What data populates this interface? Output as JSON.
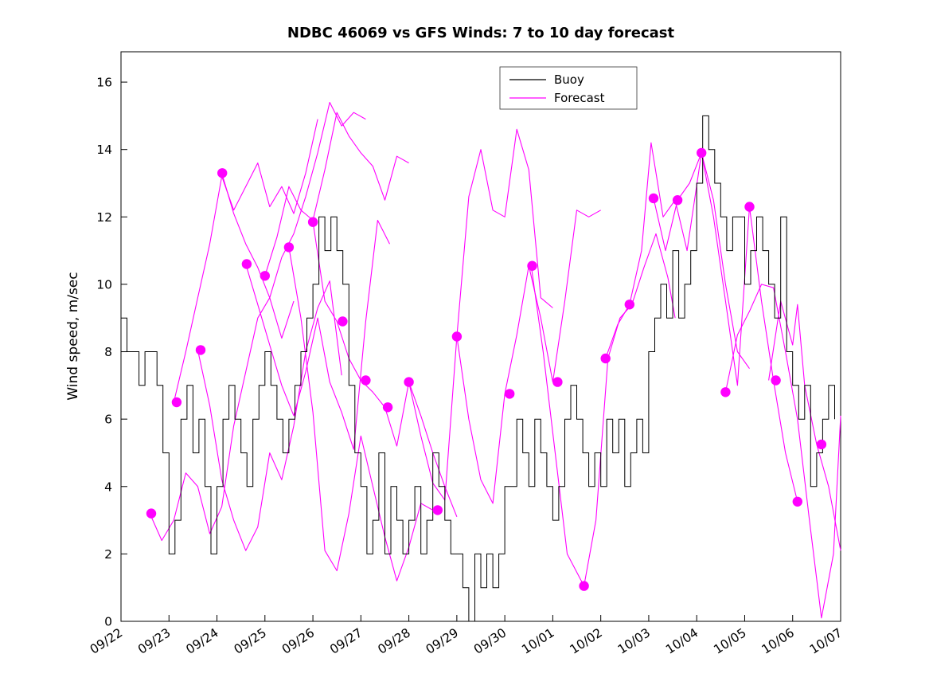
{
  "figure": {
    "background_color": "#ffffff",
    "axis_color": "#000000"
  },
  "legend": {
    "items": [
      {
        "label": "Buoy",
        "color": "#000000"
      },
      {
        "label": "Forecast",
        "color": "#ff00ff"
      }
    ]
  },
  "chart_data": {
    "type": "line",
    "title": "NDBC 46069 vs GFS Winds: 7 to 10 day forecast",
    "xlabel": "",
    "ylabel": "Wind speed, m/sec",
    "x_unit": "days since 09/22 (labels are MM/DD dates)",
    "xlim": [
      0,
      15
    ],
    "ylim": [
      0,
      16.9
    ],
    "grid": false,
    "legend_position": "top-center-inside",
    "x_ticks": [
      0,
      1,
      2,
      3,
      4,
      5,
      6,
      7,
      8,
      9,
      10,
      11,
      12,
      13,
      14,
      15
    ],
    "x_tick_labels": [
      "09/22",
      "09/23",
      "09/24",
      "09/25",
      "09/26",
      "09/27",
      "09/28",
      "09/29",
      "09/30",
      "10/01",
      "10/02",
      "10/03",
      "10/04",
      "10/05",
      "10/06",
      "10/07"
    ],
    "y_ticks": [
      0,
      2,
      4,
      6,
      8,
      10,
      12,
      14,
      16
    ],
    "series": {
      "buoy": {
        "name": "Buoy",
        "color": "#000000",
        "style": "stairs",
        "x_start": 0,
        "x_step": 0.125,
        "values": [
          9,
          8,
          8,
          7,
          8,
          8,
          7,
          5,
          2,
          3,
          6,
          7,
          5,
          6,
          4,
          2,
          4,
          6,
          7,
          6,
          5,
          4,
          6,
          7,
          8,
          7,
          6,
          5,
          6,
          7,
          8,
          9,
          10,
          12,
          11,
          12,
          11,
          10,
          7,
          5,
          4,
          2,
          3,
          5,
          2,
          4,
          3,
          2,
          3,
          4,
          2,
          3,
          5,
          4,
          3,
          2,
          2,
          1,
          0,
          2,
          1,
          2,
          1,
          2,
          4,
          4,
          6,
          5,
          4,
          6,
          5,
          4,
          3,
          4,
          6,
          7,
          6,
          5,
          4,
          5,
          4,
          6,
          5,
          6,
          4,
          5,
          6,
          5,
          8,
          9,
          10,
          9,
          11,
          9,
          10,
          11,
          13,
          15,
          14,
          13,
          12,
          11,
          12,
          12,
          10,
          11,
          12,
          11,
          10,
          9,
          12,
          8,
          7,
          6,
          7,
          4,
          5,
          6,
          7,
          6
        ]
      },
      "forecast_runs": [
        {
          "x": [
            0.6,
            0.85,
            1.1,
            1.35,
            1.6,
            1.85,
            2.1,
            2.35,
            2.6,
            2.85,
            3.1,
            3.35,
            3.6
          ],
          "y": [
            3.2,
            2.4,
            3.0,
            4.4,
            4.0,
            2.6,
            3.4,
            5.8,
            7.4,
            9.0,
            9.6,
            8.4,
            9.5
          ]
        },
        {
          "x": [
            1.1,
            1.35,
            1.6,
            1.85,
            2.1,
            2.35,
            2.6,
            2.85,
            3.1,
            3.35,
            3.6,
            3.85,
            4.1
          ],
          "y": [
            6.5,
            8.0,
            9.6,
            11.2,
            13.2,
            12.2,
            12.9,
            13.6,
            12.3,
            12.9,
            12.1,
            13.3,
            14.9
          ]
        },
        {
          "x": [
            1.6,
            1.85,
            2.1,
            2.35,
            2.6,
            2.85,
            3.1,
            3.35,
            3.6,
            3.85,
            4.1,
            4.35,
            4.6
          ],
          "y": [
            8.05,
            6.4,
            4.2,
            3.0,
            2.1,
            2.8,
            5.0,
            4.2,
            5.8,
            8.0,
            9.3,
            10.1,
            7.3
          ]
        },
        {
          "x": [
            2.1,
            2.35,
            2.6,
            2.85,
            3.1,
            3.35,
            3.6,
            3.85,
            4.1,
            4.35,
            4.6,
            4.85,
            5.1
          ],
          "y": [
            13.3,
            12.1,
            11.2,
            10.5,
            9.6,
            10.8,
            11.5,
            12.6,
            13.9,
            15.4,
            14.7,
            15.1,
            14.9
          ]
        },
        {
          "x": [
            2.6,
            2.85,
            3.1,
            3.35,
            3.6,
            3.85,
            4.1,
            4.35,
            4.6,
            4.85,
            5.1,
            5.35,
            5.6
          ],
          "y": [
            10.6,
            9.4,
            8.2,
            7.0,
            6.1,
            7.4,
            9.0,
            7.1,
            6.2,
            5.1,
            8.9,
            11.9,
            11.2
          ]
        },
        {
          "x": [
            3.0,
            3.25,
            3.5,
            3.75,
            4.0,
            4.25,
            4.5,
            4.75,
            5.0,
            5.25,
            5.5,
            5.75,
            6.0
          ],
          "y": [
            10.25,
            11.4,
            12.9,
            12.2,
            11.9,
            13.4,
            15.1,
            14.4,
            13.9,
            13.5,
            12.5,
            13.8,
            13.6
          ]
        },
        {
          "x": [
            3.5,
            3.75,
            4.0,
            4.25,
            4.5,
            4.75,
            5.0,
            5.25,
            5.5,
            5.75,
            6.0,
            6.25,
            6.5
          ],
          "y": [
            11.1,
            9.0,
            6.2,
            2.1,
            1.5,
            3.2,
            5.5,
            4.0,
            2.5,
            1.2,
            2.2,
            3.5,
            3.3
          ]
        },
        {
          "x": [
            4.0,
            4.25,
            4.5,
            4.75,
            5.0,
            5.25,
            5.5,
            5.75,
            6.0,
            6.25,
            6.5,
            6.75,
            7.0
          ],
          "y": [
            11.85,
            9.5,
            8.9,
            7.8,
            7.15,
            6.8,
            6.35,
            5.2,
            7.1,
            6.1,
            5.0,
            4.0,
            3.1
          ]
        },
        {
          "x": [
            6.0,
            6.25,
            6.5,
            6.75,
            7.0,
            7.25,
            7.5,
            7.75,
            8.0,
            8.25,
            8.5,
            8.75,
            9.0
          ],
          "y": [
            7.1,
            5.5,
            4.1,
            3.6,
            8.45,
            12.6,
            14.0,
            12.2,
            12.0,
            14.6,
            13.4,
            9.6,
            9.3
          ]
        },
        {
          "x": [
            7.0,
            7.25,
            7.5,
            7.75,
            8.0,
            8.25,
            8.5,
            8.75,
            9.0,
            9.25,
            9.5,
            9.75,
            10.0
          ],
          "y": [
            8.45,
            6.0,
            4.2,
            3.5,
            6.75,
            8.5,
            10.55,
            9.0,
            7.1,
            9.5,
            12.2,
            12.0,
            12.2
          ]
        },
        {
          "x": [
            8.55,
            8.8,
            9.05,
            9.3,
            9.65,
            9.9,
            10.15,
            10.4,
            10.65,
            10.9,
            11.15,
            11.4,
            11.55
          ],
          "y": [
            10.55,
            8.0,
            5.0,
            2.0,
            1.05,
            3.0,
            7.8,
            9.0,
            9.4,
            10.5,
            11.5,
            10.2,
            9.0
          ]
        },
        {
          "x": [
            10.1,
            10.35,
            10.6,
            10.85,
            11.05,
            11.3,
            11.55,
            11.8,
            12.1,
            12.35,
            12.6,
            12.85,
            13.1
          ],
          "y": [
            7.8,
            8.8,
            9.4,
            11.0,
            14.2,
            12.0,
            12.5,
            11.0,
            13.9,
            12.5,
            10.0,
            8.0,
            7.5
          ]
        },
        {
          "x": [
            11.1,
            11.35,
            11.6,
            11.85,
            12.1,
            12.35,
            12.6,
            12.85,
            13.1,
            13.35,
            13.6,
            13.85,
            14.1
          ],
          "y": [
            12.55,
            11.0,
            12.5,
            13.0,
            13.9,
            12.0,
            9.5,
            7.0,
            12.3,
            9.5,
            7.15,
            5.0,
            3.55
          ]
        },
        {
          "x": [
            12.6,
            12.85,
            13.1,
            13.35,
            13.6,
            13.85,
            14.1,
            14.35,
            14.6,
            14.85,
            15.0
          ],
          "y": [
            6.8,
            8.5,
            9.2,
            10.0,
            9.9,
            8.0,
            6.0,
            3.0,
            0.1,
            2.0,
            6.1
          ]
        },
        {
          "x": [
            13.5,
            13.75,
            14.0,
            14.1,
            14.25,
            14.5,
            14.75,
            15.0
          ],
          "y": [
            7.15,
            9.5,
            8.2,
            9.4,
            7.0,
            5.25,
            4.0,
            2.1
          ]
        }
      ]
    },
    "forecast_markers": {
      "name": "Forecast verification points",
      "color": "#ff00ff",
      "points": [
        [
          0.63,
          3.2
        ],
        [
          1.16,
          6.5
        ],
        [
          1.66,
          8.05
        ],
        [
          2.11,
          13.3
        ],
        [
          2.62,
          10.6
        ],
        [
          3.0,
          10.25
        ],
        [
          3.5,
          11.1
        ],
        [
          4.0,
          11.85
        ],
        [
          4.62,
          8.9
        ],
        [
          5.1,
          7.15
        ],
        [
          5.56,
          6.35
        ],
        [
          6.0,
          7.1
        ],
        [
          6.6,
          3.3
        ],
        [
          7.0,
          8.45
        ],
        [
          8.1,
          6.75
        ],
        [
          8.57,
          10.55
        ],
        [
          9.1,
          7.1
        ],
        [
          9.65,
          1.05
        ],
        [
          10.1,
          7.8
        ],
        [
          10.6,
          9.4
        ],
        [
          11.1,
          12.55
        ],
        [
          11.6,
          12.5
        ],
        [
          12.1,
          13.9
        ],
        [
          12.6,
          6.8
        ],
        [
          13.1,
          12.3
        ],
        [
          13.65,
          7.15
        ],
        [
          14.1,
          3.55
        ],
        [
          14.6,
          5.25
        ]
      ]
    }
  }
}
